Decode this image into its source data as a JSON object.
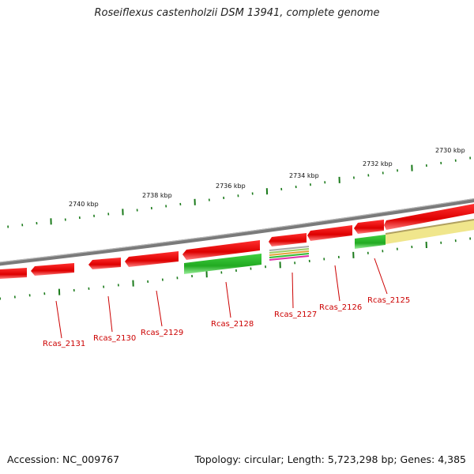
{
  "title": "Roseiflexus castenholzii DSM 13941, complete genome",
  "footer": {
    "accession": "Accession: NC_009767",
    "topology": "Topology: circular; Length: 5,723,298 bp; Genes: 4,385"
  },
  "colors": {
    "backbone": "#808080",
    "gene_red": "#ee0000",
    "gene_green": "#33cc33",
    "rrna_yellow": "#f0e68c",
    "tick_green": "#1a7a1a",
    "label_red": "#cc0000"
  },
  "scale_labels": [
    {
      "text": "2740 kbp"
    },
    {
      "text": "2738 kbp"
    },
    {
      "text": "2736 kbp"
    },
    {
      "text": "2734 kbp"
    },
    {
      "text": "2732 kbp"
    },
    {
      "text": "2730 kbp"
    }
  ],
  "gene_labels": [
    {
      "text": "Rcas_2131"
    },
    {
      "text": "Rcas_2130"
    },
    {
      "text": "Rcas_2129"
    },
    {
      "text": "Rcas_2128"
    },
    {
      "text": "Rcas_2127"
    },
    {
      "text": "Rcas_2126"
    },
    {
      "text": "Rcas_2125"
    }
  ]
}
